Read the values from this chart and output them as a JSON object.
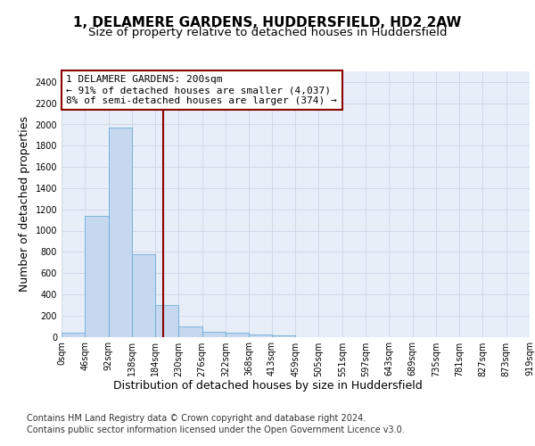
{
  "title": "1, DELAMERE GARDENS, HUDDERSFIELD, HD2 2AW",
  "subtitle": "Size of property relative to detached houses in Huddersfield",
  "xlabel": "Distribution of detached houses by size in Huddersfield",
  "ylabel": "Number of detached properties",
  "bar_values": [
    40,
    1140,
    1970,
    780,
    300,
    100,
    50,
    40,
    25,
    15,
    0,
    0,
    0,
    0,
    0,
    0,
    0,
    0,
    0,
    0
  ],
  "bin_edges": [
    0,
    46,
    92,
    138,
    184,
    230,
    276,
    322,
    368,
    413,
    459,
    505,
    551,
    597,
    643,
    689,
    735,
    781,
    827,
    873,
    919
  ],
  "x_tick_labels": [
    "0sqm",
    "46sqm",
    "92sqm",
    "138sqm",
    "184sqm",
    "230sqm",
    "276sqm",
    "322sqm",
    "368sqm",
    "413sqm",
    "459sqm",
    "505sqm",
    "551sqm",
    "597sqm",
    "643sqm",
    "689sqm",
    "735sqm",
    "781sqm",
    "827sqm",
    "873sqm",
    "919sqm"
  ],
  "bar_color": "#c5d8f0",
  "bar_edgecolor": "#6aaed6",
  "grid_color": "#d0d8e8",
  "background_color": "#e8eef8",
  "vline_x": 200,
  "vline_color": "#8b0000",
  "annotation_text": "1 DELAMERE GARDENS: 200sqm\n← 91% of detached houses are smaller (4,037)\n8% of semi-detached houses are larger (374) →",
  "annotation_box_color": "#ffffff",
  "annotation_border_color": "#8b0000",
  "ylim": [
    0,
    2500
  ],
  "yticks": [
    0,
    200,
    400,
    600,
    800,
    1000,
    1200,
    1400,
    1600,
    1800,
    2000,
    2200,
    2400
  ],
  "footer_line1": "Contains HM Land Registry data © Crown copyright and database right 2024.",
  "footer_line2": "Contains public sector information licensed under the Open Government Licence v3.0.",
  "title_fontsize": 11,
  "subtitle_fontsize": 9.5,
  "axis_label_fontsize": 9,
  "tick_fontsize": 7,
  "annotation_fontsize": 8,
  "footer_fontsize": 7
}
